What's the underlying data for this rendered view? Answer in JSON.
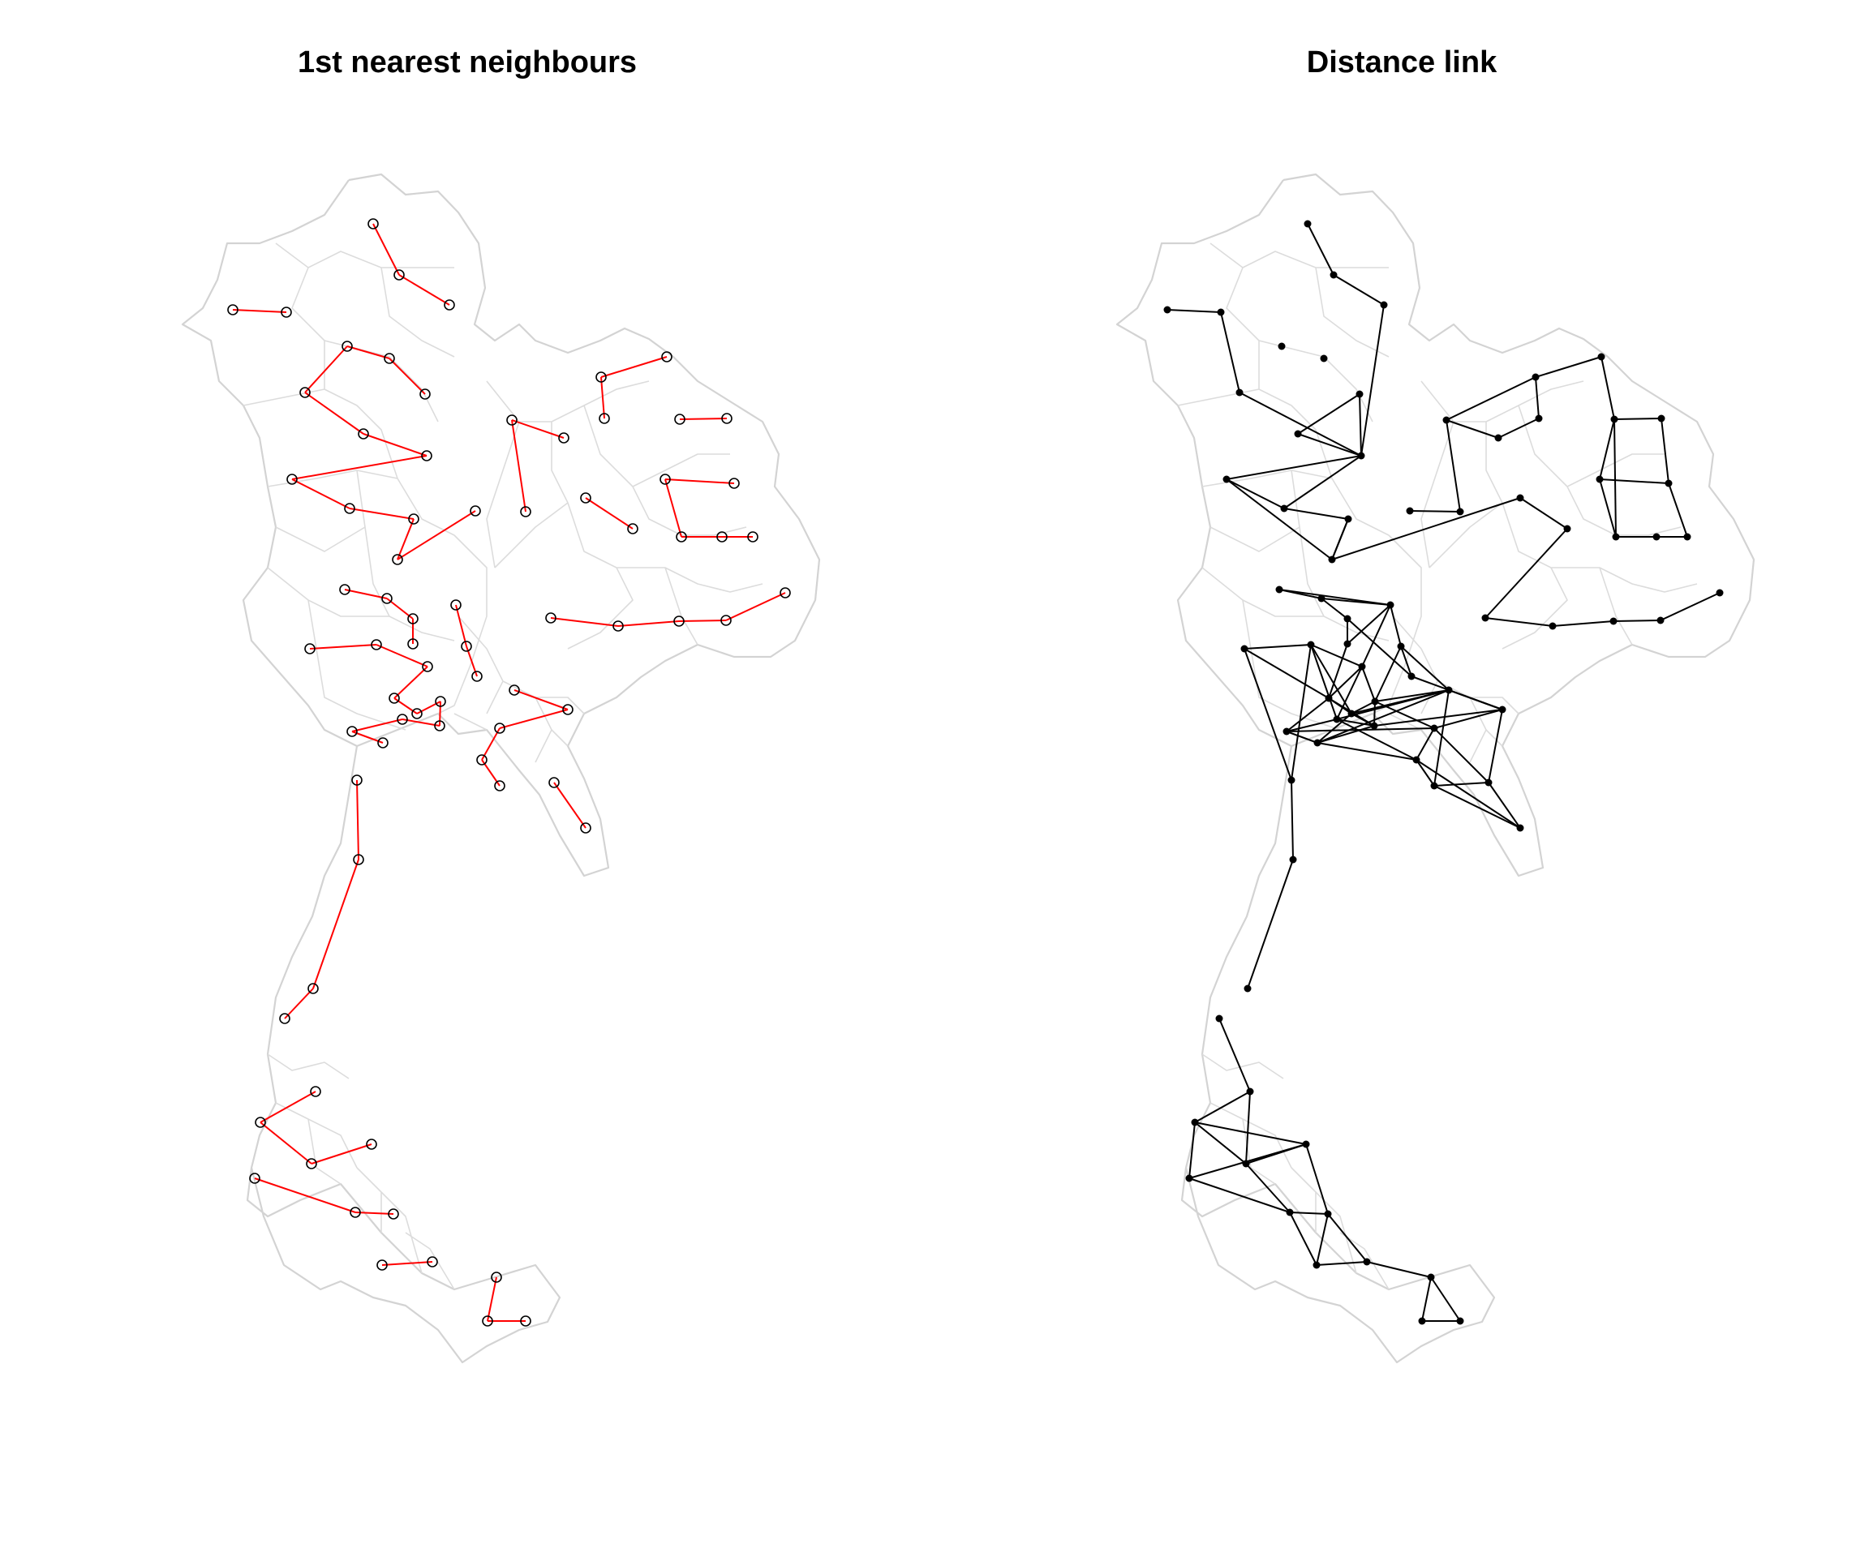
{
  "panels": [
    {
      "title": "1st nearest neighbours",
      "link_color": "#ff0000",
      "marker": "open-circle"
    },
    {
      "title": "Distance link",
      "link_color": "#000000",
      "marker": "filled-dot"
    }
  ],
  "map_style": {
    "border_color": "#d3d3d3",
    "background": "#ffffff"
  }
}
